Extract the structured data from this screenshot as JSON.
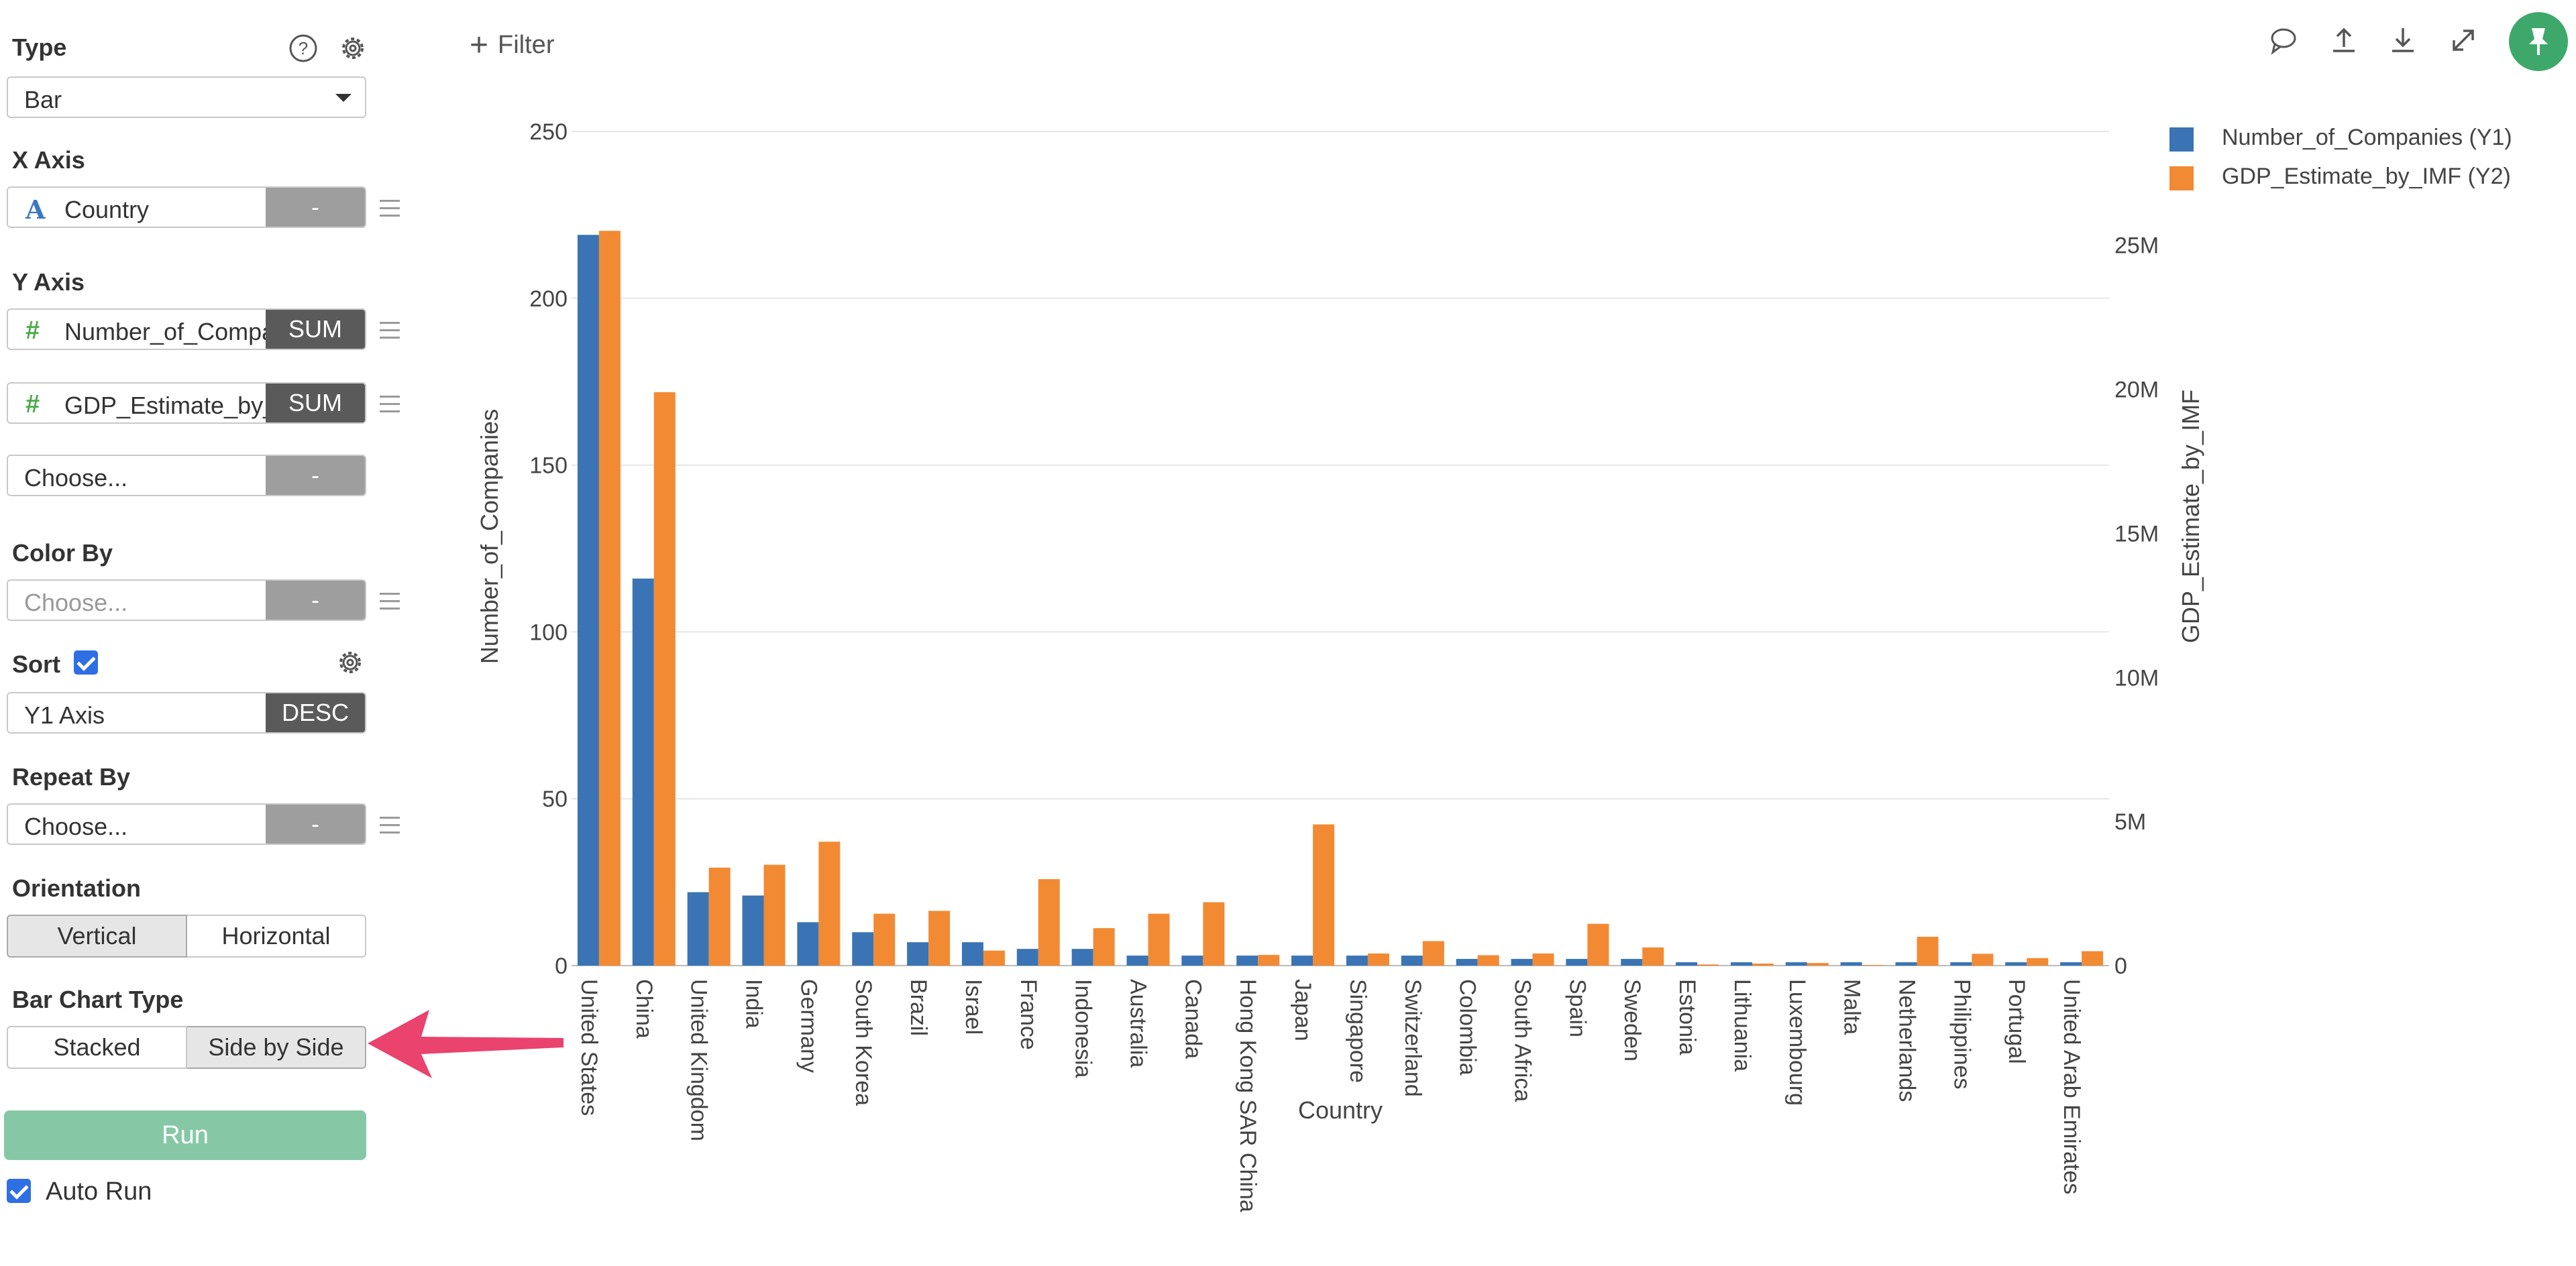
{
  "panel": {
    "type_label": "Type",
    "type_value": "Bar",
    "xaxis_label": "X Axis",
    "xaxis_field": "Country",
    "xaxis_agg": "-",
    "yaxis_label": "Y Axis",
    "y1_field": "Number_of_Compa",
    "y1_agg": "SUM",
    "y2_field": "GDP_Estimate_by_",
    "y2_agg": "SUM",
    "y3_field": "Choose...",
    "y3_agg": "-",
    "colorby_label": "Color By",
    "colorby_field": "Choose...",
    "colorby_agg": "-",
    "sort_label": "Sort",
    "sort_field": "Y1 Axis",
    "sort_order": "DESC",
    "repeat_label": "Repeat By",
    "repeat_field": "Choose...",
    "repeat_agg": "-",
    "orientation_label": "Orientation",
    "orientation_vertical": "Vertical",
    "orientation_horizontal": "Horizontal",
    "barchart_label": "Bar Chart Type",
    "bar_stacked": "Stacked",
    "bar_side": "Side by Side",
    "run_label": "Run",
    "autorun_label": "Auto Run"
  },
  "toolbar": {
    "filter_label": "Filter",
    "icons": [
      "comment-icon",
      "upload-icon",
      "download-icon",
      "expand-icon",
      "pin-icon"
    ]
  },
  "colors": {
    "y1": "#3a74b4",
    "y2": "#f28a34",
    "run": "#86c8a6",
    "pin": "#3ea86a",
    "arrow": "#e9436e"
  },
  "chart_data": {
    "type": "bar",
    "xlabel": "Country",
    "y1label": "Number_of_Companies",
    "y2label": "GDP_Estimate_by_IMF",
    "y1lim": [
      0,
      250
    ],
    "y1ticks": [
      "0",
      "50",
      "100",
      "150",
      "200",
      "250"
    ],
    "y2ticks": [
      "0",
      "5M",
      "10M",
      "15M",
      "20M",
      "25M"
    ],
    "legend_position": "top-right",
    "categories": [
      "United States",
      "China",
      "United Kingdom",
      "India",
      "Germany",
      "South Korea",
      "Brazil",
      "Israel",
      "France",
      "Indonesia",
      "Australia",
      "Canada",
      "Hong Kong SAR China",
      "Japan",
      "Singapore",
      "Switzerland",
      "Colombia",
      "South Africa",
      "Spain",
      "Sweden",
      "Estonia",
      "Lithuania",
      "Luxembourg",
      "Malta",
      "Netherlands",
      "Philippines",
      "Portugal",
      "United Arab Emirates"
    ],
    "series": [
      {
        "name": "Number_of_Companies (Y1)",
        "axis": "y1",
        "values": [
          219,
          116,
          22,
          21,
          13,
          10,
          7,
          7,
          5,
          5,
          3,
          3,
          3,
          3,
          3,
          3,
          2,
          2,
          2,
          2,
          1,
          1,
          1,
          1,
          1,
          1,
          1,
          1
        ]
      },
      {
        "name": "GDP_Estimate_by_IMF (Y2)",
        "axis": "y2",
        "values": [
          25500000,
          19900000,
          3400000,
          3500000,
          4300000,
          1800000,
          1900000,
          520000,
          3000000,
          1300000,
          1800000,
          2200000,
          370000,
          4900000,
          420000,
          850000,
          360000,
          420000,
          1450000,
          630000,
          40000,
          70000,
          90000,
          20000,
          1000000,
          410000,
          260000,
          500000
        ]
      }
    ],
    "y2lim": [
      0,
      28950000
    ]
  }
}
